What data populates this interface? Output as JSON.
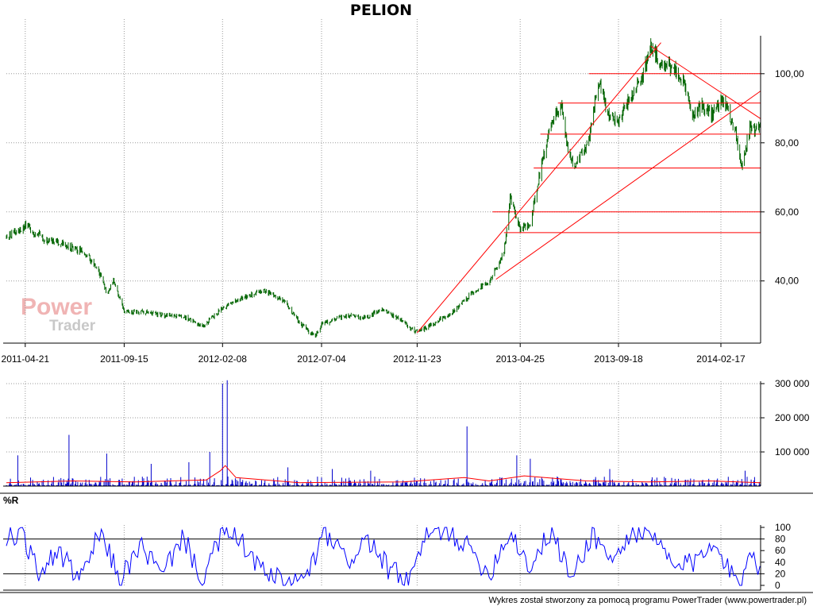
{
  "colors": {
    "price": "#006400",
    "volume": "#0000cc",
    "volume_avg": "#ff0000",
    "trendline": "#ff0000",
    "wr_line": "#0000ff",
    "grid": "#9a9a9a",
    "axis": "#000000",
    "watermark_power": "#f0b4b4",
    "watermark_trader": "#c8c8c8"
  },
  "watermark": {
    "line1": "Power",
    "line2": "Trader"
  },
  "footer": "Wykres został stworzony za pomocą programu PowerTrader (www.powertrader.pl)",
  "chart_data": [
    {
      "type": "line",
      "title": "PELION",
      "x_tick_labels": [
        "2011-04-21",
        "2011-09-15",
        "2012-02-08",
        "2012-07-04",
        "2012-11-23",
        "2013-04-25",
        "2013-09-18",
        "2014-02-17"
      ],
      "x_range": [
        "2011-03-24",
        "2014-04-17"
      ],
      "y_ticks": [
        40,
        60,
        80,
        100
      ],
      "y_tick_labels": [
        "40,00",
        "60,00",
        "80,00",
        "100,00"
      ],
      "ylim": [
        22,
        111
      ],
      "grid": true,
      "series": [
        {
          "style": "ohlc-bars",
          "points": [
            [
              "2011-03-24",
              52.5
            ],
            [
              "2011-04-21",
              56
            ],
            [
              "2011-05-20",
              52
            ],
            [
              "2011-06-20",
              50.5
            ],
            [
              "2011-07-20",
              48
            ],
            [
              "2011-08-10",
              42
            ],
            [
              "2011-08-20",
              36
            ],
            [
              "2011-08-30",
              40
            ],
            [
              "2011-09-15",
              31
            ],
            [
              "2011-10-15",
              31
            ],
            [
              "2011-11-15",
              30
            ],
            [
              "2011-12-15",
              29.5
            ],
            [
              "2012-01-10",
              27
            ],
            [
              "2012-02-08",
              32
            ],
            [
              "2012-03-10",
              35.5
            ],
            [
              "2012-04-10",
              37
            ],
            [
              "2012-05-10",
              34
            ],
            [
              "2012-06-01",
              28
            ],
            [
              "2012-06-25",
              23.5
            ],
            [
              "2012-07-04",
              27.5
            ],
            [
              "2012-08-10",
              30
            ],
            [
              "2012-09-10",
              29.5
            ],
            [
              "2012-10-01",
              32
            ],
            [
              "2012-10-20",
              30
            ],
            [
              "2012-11-23",
              25
            ],
            [
              "2012-12-20",
              28
            ],
            [
              "2013-01-15",
              31
            ],
            [
              "2013-02-10",
              36
            ],
            [
              "2013-03-10",
              40
            ],
            [
              "2013-04-01",
              48
            ],
            [
              "2013-04-10",
              64
            ],
            [
              "2013-04-25",
              55
            ],
            [
              "2013-05-10",
              57
            ],
            [
              "2013-05-25",
              72
            ],
            [
              "2013-06-10",
              86
            ],
            [
              "2013-06-25",
              91
            ],
            [
              "2013-07-05",
              78
            ],
            [
              "2013-07-15",
              73
            ],
            [
              "2013-08-05",
              81
            ],
            [
              "2013-08-20",
              98
            ],
            [
              "2013-09-01",
              88
            ],
            [
              "2013-09-18",
              86
            ],
            [
              "2013-10-10",
              95
            ],
            [
              "2013-10-25",
              100
            ],
            [
              "2013-11-05",
              108
            ],
            [
              "2013-11-20",
              103
            ],
            [
              "2013-12-10",
              101
            ],
            [
              "2013-12-25",
              98
            ],
            [
              "2014-01-05",
              88
            ],
            [
              "2014-01-20",
              91
            ],
            [
              "2014-02-05",
              88
            ],
            [
              "2014-02-17",
              93
            ],
            [
              "2014-02-28",
              89
            ],
            [
              "2014-03-10",
              84
            ],
            [
              "2014-03-20",
              73
            ],
            [
              "2014-04-01",
              84
            ],
            [
              "2014-04-17",
              84
            ]
          ]
        }
      ],
      "horizontal_lines": [
        {
          "y": 100,
          "from": "2013-08-05"
        },
        {
          "y": 91.5,
          "from": "2013-06-20"
        },
        {
          "y": 82.5,
          "from": "2013-05-25"
        },
        {
          "y": 72.7,
          "from": "2013-05-15"
        },
        {
          "y": 60,
          "from": "2013-03-15"
        },
        {
          "y": 54,
          "from": "2013-04-01"
        }
      ],
      "trendlines": [
        {
          "from": [
            "2012-11-23",
            25
          ],
          "to": [
            "2013-11-20",
            109
          ]
        },
        {
          "from": [
            "2013-03-20",
            40.5
          ],
          "to": [
            "2014-04-17",
            95
          ]
        },
        {
          "from": [
            "2013-11-05",
            108
          ],
          "to": [
            "2014-04-17",
            87
          ]
        }
      ]
    },
    {
      "type": "bar",
      "y_ticks": [
        100000,
        200000,
        300000
      ],
      "y_tick_labels": [
        "100 000",
        "200 000",
        "300 000"
      ],
      "ylim": [
        0,
        300000
      ],
      "grid": true,
      "series": [
        {
          "style": "volume-bars",
          "spikes": [
            [
              "2011-04-10",
              90000
            ],
            [
              "2011-06-25",
              150000
            ],
            [
              "2011-08-20",
              95000
            ],
            [
              "2011-10-25",
              65000
            ],
            [
              "2011-12-20",
              70000
            ],
            [
              "2012-01-20",
              100000
            ],
            [
              "2012-02-08",
              300000
            ],
            [
              "2012-02-15",
              310000
            ],
            [
              "2012-05-15",
              55000
            ],
            [
              "2012-07-20",
              50000
            ],
            [
              "2012-09-15",
              45000
            ],
            [
              "2013-02-05",
              175000
            ],
            [
              "2013-04-20",
              90000
            ],
            [
              "2013-05-10",
              80000
            ],
            [
              "2013-09-05",
              50000
            ],
            [
              "2014-03-25",
              45000
            ]
          ]
        },
        {
          "style": "moving-average",
          "points": [
            [
              "2011-03-24",
              10000
            ],
            [
              "2011-07-01",
              15000
            ],
            [
              "2011-10-01",
              12000
            ],
            [
              "2012-01-15",
              18000
            ],
            [
              "2012-02-05",
              45000
            ],
            [
              "2012-02-12",
              60000
            ],
            [
              "2012-02-28",
              25000
            ],
            [
              "2012-06-01",
              10000
            ],
            [
              "2012-11-01",
              12000
            ],
            [
              "2013-02-01",
              25000
            ],
            [
              "2013-03-10",
              15000
            ],
            [
              "2013-05-01",
              30000
            ],
            [
              "2013-08-01",
              15000
            ],
            [
              "2013-11-01",
              12000
            ],
            [
              "2014-02-01",
              15000
            ],
            [
              "2014-04-17",
              10000
            ]
          ]
        }
      ]
    },
    {
      "type": "line",
      "title": "%R",
      "y_ticks": [
        0,
        20,
        40,
        60,
        80,
        100
      ],
      "y_tick_labels": [
        "0",
        "20",
        "40",
        "60",
        "80",
        "100"
      ],
      "ylim": [
        0,
        100
      ],
      "reference_lines": [
        20,
        80
      ],
      "series": [
        {
          "style": "oscillator",
          "points": [
            [
              "2011-03-24",
              80
            ],
            [
              "2011-04-15",
              95
            ],
            [
              "2011-05-10",
              20
            ],
            [
              "2011-06-10",
              60
            ],
            [
              "2011-07-10",
              5
            ],
            [
              "2011-08-10",
              90
            ],
            [
              "2011-09-10",
              10
            ],
            [
              "2011-10-10",
              70
            ],
            [
              "2011-11-10",
              15
            ],
            [
              "2011-12-10",
              85
            ],
            [
              "2012-01-10",
              10
            ],
            [
              "2012-02-10",
              95
            ],
            [
              "2012-03-10",
              70
            ],
            [
              "2012-04-10",
              20
            ],
            [
              "2012-05-10",
              5
            ],
            [
              "2012-06-10",
              10
            ],
            [
              "2012-07-10",
              90
            ],
            [
              "2012-08-10",
              40
            ],
            [
              "2012-09-10",
              80
            ],
            [
              "2012-10-10",
              30
            ],
            [
              "2012-11-10",
              5
            ],
            [
              "2012-12-10",
              90
            ],
            [
              "2013-01-10",
              95
            ],
            [
              "2013-02-10",
              60
            ],
            [
              "2013-03-10",
              20
            ],
            [
              "2013-04-10",
              95
            ],
            [
              "2013-05-10",
              30
            ],
            [
              "2013-06-10",
              95
            ],
            [
              "2013-07-10",
              10
            ],
            [
              "2013-08-10",
              90
            ],
            [
              "2013-09-10",
              40
            ],
            [
              "2013-10-10",
              95
            ],
            [
              "2013-11-10",
              80
            ],
            [
              "2013-12-10",
              30
            ],
            [
              "2014-01-10",
              40
            ],
            [
              "2014-02-10",
              85
            ],
            [
              "2014-03-01",
              20
            ],
            [
              "2014-03-20",
              10
            ],
            [
              "2014-04-05",
              70
            ],
            [
              "2014-04-17",
              15
            ]
          ]
        }
      ]
    }
  ]
}
